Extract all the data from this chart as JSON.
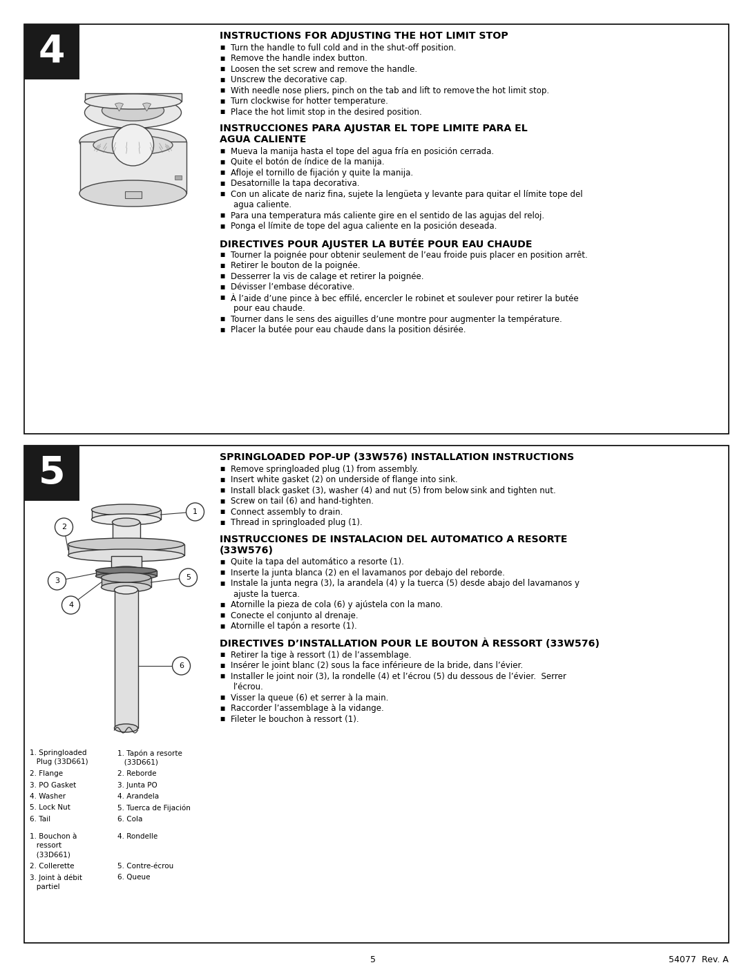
{
  "page_bg": "#ffffff",
  "sec4": {
    "step_num": "4",
    "title_en": "INSTRUCTIONS FOR ADJUSTING THE HOT LIMIT STOP",
    "bullets_en": [
      "Turn the handle to full cold and in the shut-off position.",
      "Remove the handle index button.",
      "Loosen the set screw and remove the handle.",
      "Unscrew the decorative cap.",
      "With needle nose pliers, pinch on the tab and lift to remove the hot limit stop.",
      "Turn clockwise for hotter temperature.",
      "Place the hot limit stop in the desired position."
    ],
    "title_es": "INSTRUCCIONES PARA AJUSTAR EL TOPE LIMITE PARA EL\nAGUA CALIENTE",
    "bullets_es": [
      "Mueva la manija hasta el tope del agua fría en posición cerrada.",
      "Quite el botón de índice de la manija.",
      "Afloje el tornillo de fijación y quite la manija.",
      "Desatornille la tapa decorativa.",
      "Con un alicate de nariz fina, sujete la lengüeta y levante para quitar el límite tope del\nagua caliente.",
      "Para una temperatura más caliente gire en el sentido de las agujas del reloj.",
      "Ponga el límite de tope del agua caliente en la posición deseada."
    ],
    "title_fr": "DIRECTIVES POUR AJUSTER LA BUTÉE POUR EAU CHAUDE",
    "bullets_fr": [
      "Tourner la poignée pour obtenir seulement de l’eau froide puis placer en position arrêt.",
      "Retirer le bouton de la poignée.",
      "Desserrer la vis de calage et retirer la poignée.",
      "Dévisser l’embase décorative.",
      "À l’aide d’une pince à bec effilé, encercler le robinet et soulever pour retirer la butée\npour eau chaude.",
      "Tourner dans le sens des aiguilles d’une montre pour augmenter la température.",
      "Placer la butée pour eau chaude dans la position désirée."
    ]
  },
  "sec5": {
    "step_num": "5",
    "title_en": "SPRINGLOADED POP-UP (33W576) INSTALLATION INSTRUCTIONS",
    "bullets_en": [
      "Remove springloaded plug (1) from assembly.",
      "Insert white gasket (2) on underside of flange into sink.",
      "Install black gasket (3), washer (4) and nut (5) from below sink and tighten nut.",
      "Screw on tail (6) and hand-tighten.",
      "Connect assembly to drain.",
      "Thread in springloaded plug (1)."
    ],
    "title_es2": "INSTRUCCIONES DE INSTALACION DEL AUTOMATICO A RESORTE\n(33W576)",
    "bullets_es2": [
      "Quite la tapa del automático a resorte (1).",
      "Inserte la junta blanca (2) en el lavamanos por debajo del reborde.",
      "Instale la junta negra (3), la arandela (4) y la tuerca (5) desde abajo del lavamanos y\najuste la tuerca.",
      "Atornille la pieza de cola (6) y ajústela con la mano.",
      "Conecte el conjunto al drenaje.",
      "Atornille el tapón a resorte (1)."
    ],
    "title_fr2": "DIRECTIVES D’INSTALLATION POUR LE BOUTON À RESSORT (33W576)",
    "bullets_fr2": [
      "Retirer la tige à ressort (1) de l’assemblage.",
      "Insérer le joint blanc (2) sous la face inférieure de la bride, dans l’évier.",
      "Installer le joint noir (3), la rondelle (4) et l’écrou (5) du dessous de l’évier.  Serrer\nl’écrou.",
      "Visser la queue (6) et serrer à la main.",
      "Raccorder l’assemblage à la vidange.",
      "Fileter le bouchon à ressort (1)."
    ],
    "legend": [
      [
        "1. Springloaded\n   Plug (33D661)",
        "1. Tapón a resorte\n   (33D661)"
      ],
      [
        "2. Flange",
        "2. Reborde"
      ],
      [
        "3. PO Gasket",
        "3. Junta PO"
      ],
      [
        "4. Washer",
        "4. Arandela"
      ],
      [
        "5. Lock Nut",
        "5. Tuerca de Fijación"
      ],
      [
        "6. Tail",
        "6. Cola"
      ]
    ],
    "legend_fr": [
      [
        "1. Bouchon à\n   ressort\n   (33D661)",
        "4. Rondelle"
      ],
      [
        "2. Collerette",
        "5. Contre-écrou"
      ],
      [
        "3. Joint à débit\n   partiel",
        "6. Queue"
      ]
    ]
  },
  "footer_page": "5",
  "footer_ref": "54077  Rev. A"
}
